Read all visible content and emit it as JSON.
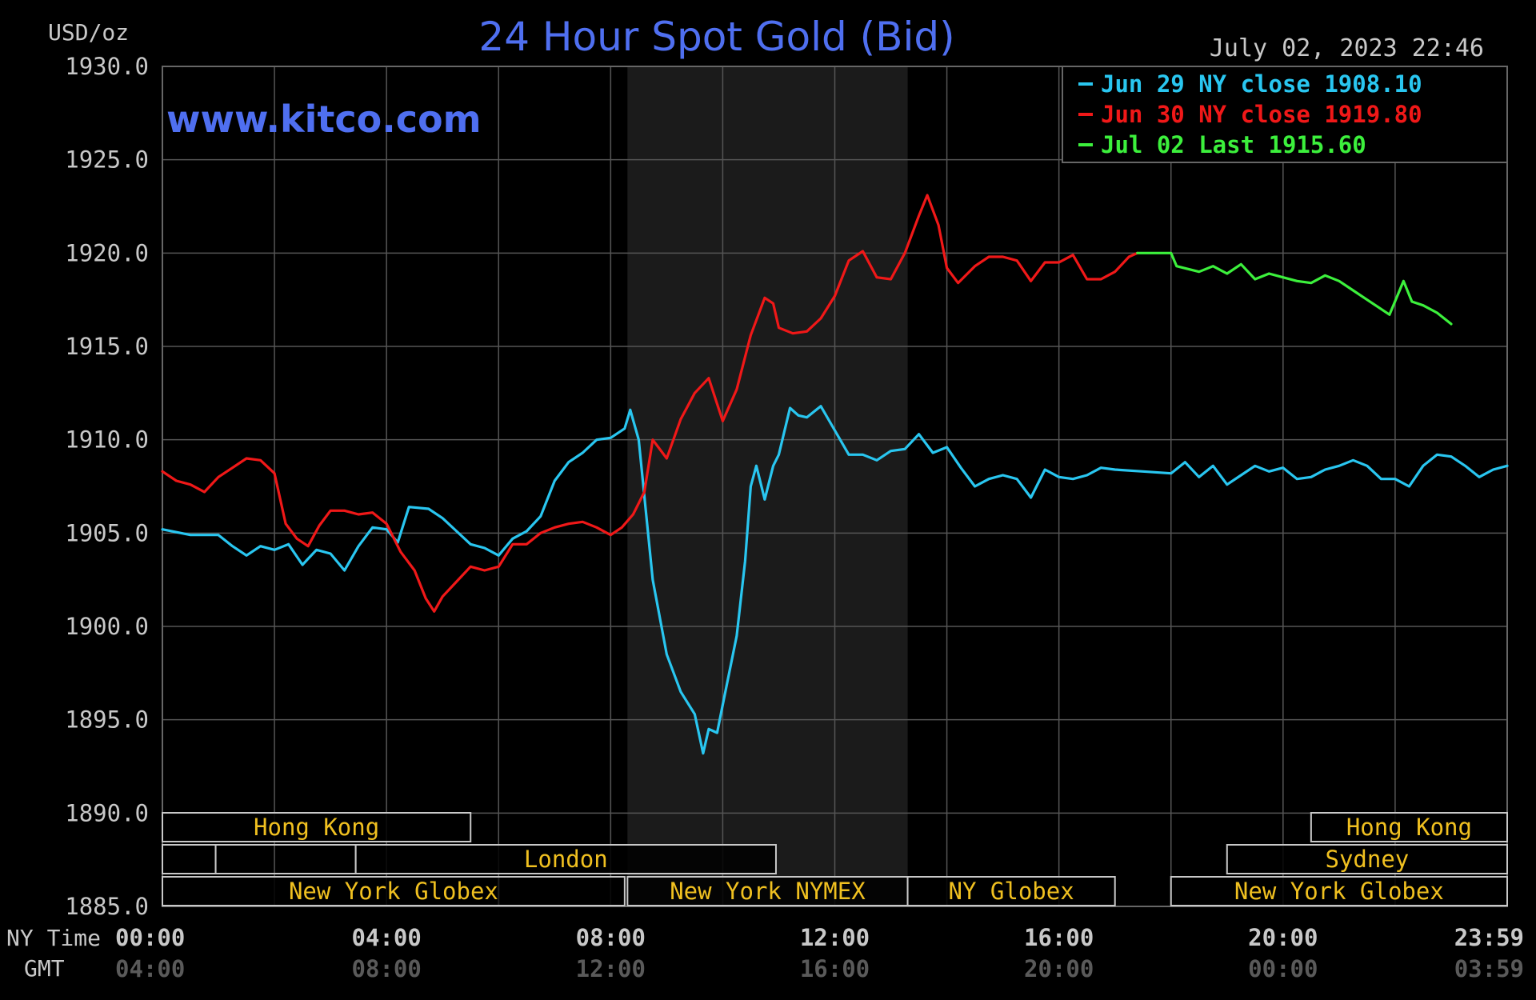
{
  "header": {
    "units": "USD/oz",
    "title": "24 Hour Spot Gold (Bid)",
    "timestamp": "July 02, 2023 22:46",
    "watermark": "www.kitco.com"
  },
  "legend": [
    {
      "label": "Jun 29 NY close 1908.10",
      "color": "#29c6f0"
    },
    {
      "label": "Jun 30 NY close 1919.80",
      "color": "#f01818"
    },
    {
      "label": "Jul 02 Last 1915.60",
      "color": "#3cf03c"
    }
  ],
  "y_ticks": [
    "1930.0",
    "1925.0",
    "1920.0",
    "1915.0",
    "1910.0",
    "1905.0",
    "1900.0",
    "1895.0",
    "1890.0",
    "1885.0"
  ],
  "x_axis": {
    "row1_label": "NY Time",
    "row2_label": "GMT",
    "ny_ticks": [
      "00:00",
      "04:00",
      "08:00",
      "12:00",
      "16:00",
      "20:00",
      "23:59"
    ],
    "gmt_ticks": [
      "04:00",
      "08:00",
      "12:00",
      "16:00",
      "20:00",
      "00:00",
      "03:59"
    ]
  },
  "sessions": [
    {
      "label": "Hong Kong",
      "row": 0,
      "start": 0.0,
      "end": 5.5
    },
    {
      "label": "",
      "row": 1,
      "start": 0.0,
      "end": 0.95
    },
    {
      "label": "",
      "row": 1,
      "start": 0.95,
      "end": 3.45
    },
    {
      "label": "London",
      "row": 1,
      "start": 3.45,
      "end": 10.95
    },
    {
      "label": "",
      "row": 2,
      "start": 0.0,
      "end": 6.0
    },
    {
      "label": "New York Globex",
      "row": 2,
      "start": 0.0,
      "end": 8.25
    },
    {
      "label": "New York NYMEX",
      "row": 2,
      "start": 8.3,
      "end": 13.3
    },
    {
      "label": "NY Globex",
      "row": 2,
      "start": 13.3,
      "end": 17.0
    },
    {
      "label": "Hong Kong",
      "row": 0,
      "start": 20.5,
      "end": 24.0
    },
    {
      "label": "Sydney",
      "row": 1,
      "start": 19.0,
      "end": 24.0
    },
    {
      "label": "New York Globex",
      "row": 2,
      "start": 18.0,
      "end": 24.0
    }
  ],
  "chart_data": {
    "type": "line",
    "title": "24 Hour Spot Gold (Bid)",
    "ylabel": "USD/oz",
    "xlabel": "NY Time",
    "ylim": [
      1885,
      1930
    ],
    "xlim": [
      0,
      24
    ],
    "grid": true,
    "legend_position": "top-right",
    "shaded_region": [
      8.3,
      13.3
    ],
    "series": [
      {
        "name": "Jun 29 NY close 1908.10",
        "color": "#29c6f0",
        "points": [
          [
            0,
            1905.2
          ],
          [
            0.5,
            1904.9
          ],
          [
            1.0,
            1904.9
          ],
          [
            1.25,
            1904.3
          ],
          [
            1.5,
            1903.8
          ],
          [
            1.75,
            1904.3
          ],
          [
            2.0,
            1904.1
          ],
          [
            2.25,
            1904.4
          ],
          [
            2.5,
            1903.3
          ],
          [
            2.75,
            1904.1
          ],
          [
            3.0,
            1903.9
          ],
          [
            3.25,
            1903.0
          ],
          [
            3.5,
            1904.3
          ],
          [
            3.75,
            1905.3
          ],
          [
            4.0,
            1905.2
          ],
          [
            4.2,
            1904.5
          ],
          [
            4.4,
            1906.4
          ],
          [
            4.75,
            1906.3
          ],
          [
            5.0,
            1905.8
          ],
          [
            5.25,
            1905.1
          ],
          [
            5.5,
            1904.4
          ],
          [
            5.75,
            1904.2
          ],
          [
            6.0,
            1903.8
          ],
          [
            6.25,
            1904.7
          ],
          [
            6.5,
            1905.1
          ],
          [
            6.75,
            1905.9
          ],
          [
            7.0,
            1907.8
          ],
          [
            7.25,
            1908.8
          ],
          [
            7.5,
            1909.3
          ],
          [
            7.75,
            1910.0
          ],
          [
            8.0,
            1910.1
          ],
          [
            8.25,
            1910.6
          ],
          [
            8.35,
            1911.6
          ],
          [
            8.5,
            1910.0
          ],
          [
            8.6,
            1907.0
          ],
          [
            8.75,
            1902.5
          ],
          [
            9.0,
            1898.5
          ],
          [
            9.25,
            1896.5
          ],
          [
            9.5,
            1895.3
          ],
          [
            9.65,
            1893.2
          ],
          [
            9.75,
            1894.5
          ],
          [
            9.9,
            1894.3
          ],
          [
            10.0,
            1895.8
          ],
          [
            10.25,
            1899.5
          ],
          [
            10.4,
            1903.5
          ],
          [
            10.5,
            1907.5
          ],
          [
            10.6,
            1908.6
          ],
          [
            10.75,
            1906.8
          ],
          [
            10.9,
            1908.6
          ],
          [
            11.0,
            1909.2
          ],
          [
            11.2,
            1911.7
          ],
          [
            11.35,
            1911.3
          ],
          [
            11.5,
            1911.2
          ],
          [
            11.75,
            1911.8
          ],
          [
            12.0,
            1910.5
          ],
          [
            12.25,
            1909.2
          ],
          [
            12.5,
            1909.2
          ],
          [
            12.75,
            1908.9
          ],
          [
            13.0,
            1909.4
          ],
          [
            13.25,
            1909.5
          ],
          [
            13.5,
            1910.3
          ],
          [
            13.75,
            1909.3
          ],
          [
            14.0,
            1909.6
          ],
          [
            14.25,
            1908.5
          ],
          [
            14.5,
            1907.5
          ],
          [
            14.75,
            1907.9
          ],
          [
            15.0,
            1908.1
          ],
          [
            15.25,
            1907.9
          ],
          [
            15.5,
            1906.9
          ],
          [
            15.75,
            1908.4
          ],
          [
            16.0,
            1908.0
          ],
          [
            16.25,
            1907.9
          ],
          [
            16.5,
            1908.1
          ],
          [
            16.75,
            1908.5
          ],
          [
            17.0,
            1908.4
          ],
          [
            17.5,
            1908.3
          ],
          [
            18.0,
            1908.2
          ],
          [
            18.25,
            1908.8
          ],
          [
            18.5,
            1908.0
          ],
          [
            18.75,
            1908.6
          ],
          [
            19.0,
            1907.6
          ],
          [
            19.25,
            1908.1
          ],
          [
            19.5,
            1908.6
          ],
          [
            19.75,
            1908.3
          ],
          [
            20.0,
            1908.5
          ],
          [
            20.25,
            1907.9
          ],
          [
            20.5,
            1908.0
          ],
          [
            20.75,
            1908.4
          ],
          [
            21.0,
            1908.6
          ],
          [
            21.25,
            1908.9
          ],
          [
            21.5,
            1908.6
          ],
          [
            21.75,
            1907.9
          ],
          [
            22.0,
            1907.9
          ],
          [
            22.25,
            1907.5
          ],
          [
            22.5,
            1908.6
          ],
          [
            22.75,
            1909.2
          ],
          [
            23.0,
            1909.1
          ],
          [
            23.25,
            1908.6
          ],
          [
            23.5,
            1908.0
          ],
          [
            23.75,
            1908.4
          ],
          [
            24.0,
            1908.6
          ]
        ]
      },
      {
        "name": "Jun 30 NY close 1919.80",
        "color": "#f01818",
        "points": [
          [
            0,
            1908.3
          ],
          [
            0.25,
            1907.8
          ],
          [
            0.5,
            1907.6
          ],
          [
            0.75,
            1907.2
          ],
          [
            1.0,
            1908.0
          ],
          [
            1.25,
            1908.5
          ],
          [
            1.5,
            1909.0
          ],
          [
            1.75,
            1908.9
          ],
          [
            2.0,
            1908.2
          ],
          [
            2.2,
            1905.5
          ],
          [
            2.4,
            1904.7
          ],
          [
            2.6,
            1904.3
          ],
          [
            2.8,
            1905.4
          ],
          [
            3.0,
            1906.2
          ],
          [
            3.25,
            1906.2
          ],
          [
            3.5,
            1906.0
          ],
          [
            3.75,
            1906.1
          ],
          [
            4.0,
            1905.5
          ],
          [
            4.25,
            1904.0
          ],
          [
            4.5,
            1903.0
          ],
          [
            4.7,
            1901.5
          ],
          [
            4.85,
            1900.8
          ],
          [
            5.0,
            1901.6
          ],
          [
            5.25,
            1902.4
          ],
          [
            5.5,
            1903.2
          ],
          [
            5.75,
            1903.0
          ],
          [
            6.0,
            1903.2
          ],
          [
            6.25,
            1904.4
          ],
          [
            6.5,
            1904.4
          ],
          [
            6.75,
            1905.0
          ],
          [
            7.0,
            1905.3
          ],
          [
            7.25,
            1905.5
          ],
          [
            7.5,
            1905.6
          ],
          [
            7.75,
            1905.3
          ],
          [
            8.0,
            1904.9
          ],
          [
            8.2,
            1905.3
          ],
          [
            8.4,
            1906.0
          ],
          [
            8.6,
            1907.2
          ],
          [
            8.75,
            1910.0
          ],
          [
            9.0,
            1909.0
          ],
          [
            9.25,
            1911.1
          ],
          [
            9.5,
            1912.5
          ],
          [
            9.75,
            1913.3
          ],
          [
            10.0,
            1911.0
          ],
          [
            10.25,
            1912.7
          ],
          [
            10.5,
            1915.6
          ],
          [
            10.75,
            1917.6
          ],
          [
            10.9,
            1917.3
          ],
          [
            11.0,
            1916.0
          ],
          [
            11.25,
            1915.7
          ],
          [
            11.5,
            1915.8
          ],
          [
            11.75,
            1916.5
          ],
          [
            12.0,
            1917.7
          ],
          [
            12.25,
            1919.6
          ],
          [
            12.5,
            1920.1
          ],
          [
            12.75,
            1918.7
          ],
          [
            13.0,
            1918.6
          ],
          [
            13.25,
            1920.0
          ],
          [
            13.5,
            1922.0
          ],
          [
            13.65,
            1923.1
          ],
          [
            13.85,
            1921.5
          ],
          [
            14.0,
            1919.2
          ],
          [
            14.2,
            1918.4
          ],
          [
            14.5,
            1919.3
          ],
          [
            14.75,
            1919.8
          ],
          [
            15.0,
            1919.8
          ],
          [
            15.25,
            1919.6
          ],
          [
            15.5,
            1918.5
          ],
          [
            15.75,
            1919.5
          ],
          [
            16.0,
            1919.5
          ],
          [
            16.25,
            1919.9
          ],
          [
            16.5,
            1918.6
          ],
          [
            16.75,
            1918.6
          ],
          [
            17.0,
            1919.0
          ],
          [
            17.25,
            1919.8
          ],
          [
            17.4,
            1920.0
          ]
        ]
      },
      {
        "name": "Jul 02 Last 1915.60",
        "color": "#3cf03c",
        "points": [
          [
            17.4,
            1920.0
          ],
          [
            18.0,
            1920.0
          ],
          [
            18.1,
            1919.3
          ],
          [
            18.5,
            1919.0
          ],
          [
            18.75,
            1919.3
          ],
          [
            19.0,
            1918.9
          ],
          [
            19.25,
            1919.4
          ],
          [
            19.5,
            1918.6
          ],
          [
            19.75,
            1918.9
          ],
          [
            20.0,
            1918.7
          ],
          [
            20.25,
            1918.5
          ],
          [
            20.5,
            1918.4
          ],
          [
            20.75,
            1918.8
          ],
          [
            21.0,
            1918.5
          ],
          [
            21.25,
            1918.0
          ],
          [
            21.5,
            1917.5
          ],
          [
            21.75,
            1917.0
          ],
          [
            21.9,
            1916.7
          ],
          [
            22.15,
            1918.5
          ],
          [
            22.3,
            1917.4
          ],
          [
            22.5,
            1917.2
          ],
          [
            22.75,
            1916.8
          ],
          [
            23.0,
            1916.2
          ]
        ]
      }
    ]
  }
}
